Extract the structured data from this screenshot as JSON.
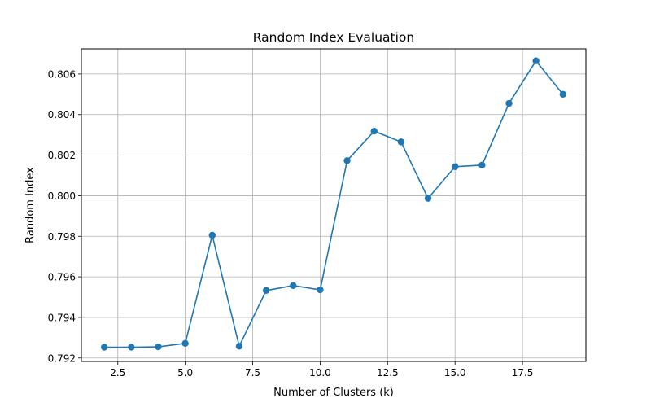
{
  "chart_data": {
    "type": "line",
    "title": "Random Index Evaluation",
    "xlabel": "Number of Clusters (k)",
    "ylabel": "Random Index",
    "xlim": [
      1.15,
      19.85
    ],
    "ylim": [
      0.79183,
      0.80724
    ],
    "xticks": [
      2.5,
      5.0,
      7.5,
      10.0,
      12.5,
      15.0,
      17.5
    ],
    "xtick_labels": [
      "2.5",
      "5.0",
      "7.5",
      "10.0",
      "12.5",
      "15.0",
      "17.5"
    ],
    "yticks": [
      0.792,
      0.794,
      0.796,
      0.798,
      0.8,
      0.802,
      0.804,
      0.806
    ],
    "ytick_labels": [
      "0.792",
      "0.794",
      "0.796",
      "0.798",
      "0.800",
      "0.802",
      "0.804",
      "0.806"
    ],
    "grid": true,
    "color": "#1f77b4",
    "marker": "circle",
    "series": [
      {
        "x": [
          2,
          3,
          4,
          5,
          6,
          7,
          8,
          9,
          10,
          11,
          12,
          13,
          14,
          15,
          16,
          17,
          18,
          19
        ],
        "values": [
          0.79253,
          0.79253,
          0.79255,
          0.79272,
          0.79805,
          0.79258,
          0.79533,
          0.79557,
          0.79536,
          0.80173,
          0.80318,
          0.80265,
          0.79987,
          0.80143,
          0.80151,
          0.80455,
          0.80665,
          0.805
        ]
      }
    ]
  }
}
